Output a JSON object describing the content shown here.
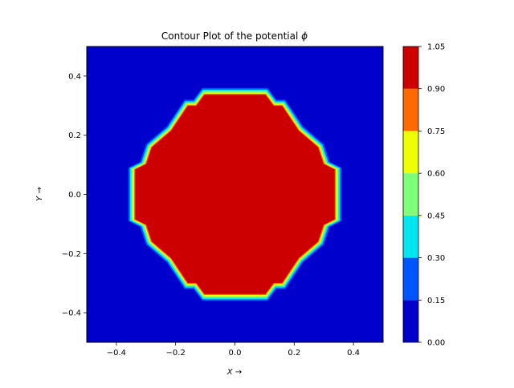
{
  "chart_data": {
    "type": "contour",
    "title": "Contour Plot of the potential φ",
    "title_prefix": "Contour Plot of the potential ",
    "title_symbol": "ϕ",
    "xlabel": "X →",
    "ylabel": "Y →",
    "xlim": [
      -0.5,
      0.5
    ],
    "ylim": [
      -0.5,
      0.5
    ],
    "grid": false,
    "x_ticks": [
      -0.4,
      -0.2,
      0.0,
      0.2,
      0.4
    ],
    "x_tick_labels": [
      "−0.4",
      "−0.2",
      "0.0",
      "0.2",
      "0.4"
    ],
    "y_ticks": [
      0.4,
      0.2,
      0.0,
      -0.2,
      -0.4
    ],
    "y_tick_labels": [
      "0.4",
      "0.2",
      "0.0",
      "−0.2",
      "−0.4"
    ],
    "colorbar": {
      "levels": [
        0.0,
        0.15,
        0.3,
        0.45,
        0.6,
        0.75,
        0.9,
        1.05
      ],
      "level_labels": [
        "0.00",
        "0.15",
        "0.30",
        "0.45",
        "0.60",
        "0.75",
        "0.90",
        "1.05"
      ],
      "colors": [
        "#0000cc",
        "#0055ff",
        "#00e5ee",
        "#7dff7a",
        "#eeff00",
        "#ff6a00",
        "#cc0000"
      ]
    },
    "background_value": 0.0,
    "region": {
      "description": "dodecagon-shaped region of potential ≈1 (wire) near origin",
      "radius": 0.36,
      "outline_x": [
        0.09,
        0.11,
        0.14,
        0.17,
        0.23,
        0.3,
        0.32,
        0.36,
        0.36,
        0.32,
        0.3,
        0.23,
        0.17,
        0.14,
        0.11,
        0.09,
        -0.09,
        -0.11,
        -0.14,
        -0.17,
        -0.23,
        -0.3,
        -0.32,
        -0.36,
        -0.36,
        -0.32,
        -0.3,
        -0.23,
        -0.17,
        -0.14,
        -0.11,
        -0.09
      ],
      "outline_y": [
        0.36,
        0.36,
        0.32,
        0.32,
        0.23,
        0.17,
        0.11,
        0.09,
        -0.09,
        -0.11,
        -0.17,
        -0.23,
        -0.32,
        -0.32,
        -0.36,
        -0.36,
        -0.36,
        -0.36,
        -0.32,
        -0.32,
        -0.23,
        -0.17,
        -0.11,
        -0.09,
        0.09,
        0.11,
        0.17,
        0.23,
        0.32,
        0.32,
        0.36,
        0.36
      ]
    }
  }
}
